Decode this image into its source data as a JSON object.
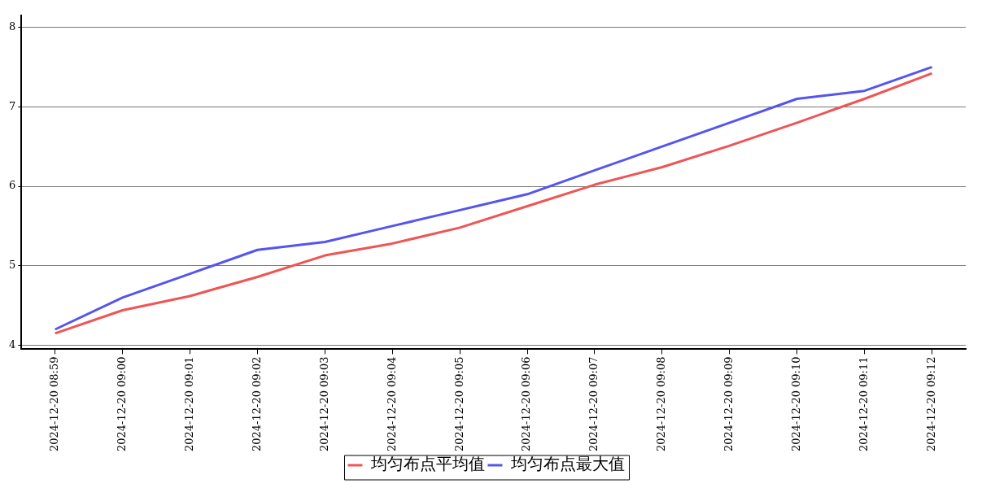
{
  "chart_data": {
    "type": "line",
    "categories": [
      "2024-12-20 08:59",
      "2024-12-20 09:00",
      "2024-12-20 09:01",
      "2024-12-20 09:02",
      "2024-12-20 09:03",
      "2024-12-20 09:04",
      "2024-12-20 09:05",
      "2024-12-20 09:06",
      "2024-12-20 09:07",
      "2024-12-20 09:08",
      "2024-12-20 09:09",
      "2024-12-20 09:10",
      "2024-12-20 09:11",
      "2024-12-20 09:12"
    ],
    "series": [
      {
        "name": "均匀布点平均值",
        "color": "#ee5555",
        "values": [
          4.15,
          4.44,
          4.62,
          4.86,
          5.13,
          5.28,
          5.48,
          5.75,
          6.02,
          6.24,
          6.51,
          6.8,
          7.1,
          7.42
        ]
      },
      {
        "name": "均匀布点最大值",
        "color": "#5555ee",
        "values": [
          4.2,
          4.6,
          4.9,
          5.2,
          5.3,
          5.5,
          5.7,
          5.9,
          6.2,
          6.5,
          6.8,
          7.1,
          7.2,
          7.5
        ]
      }
    ],
    "ylim": [
      3.95,
      8.15
    ],
    "yticks": [
      4,
      5,
      6,
      7,
      8
    ],
    "grid": "y",
    "legend": "bottom",
    "marker": "none",
    "line_style": "solid"
  }
}
